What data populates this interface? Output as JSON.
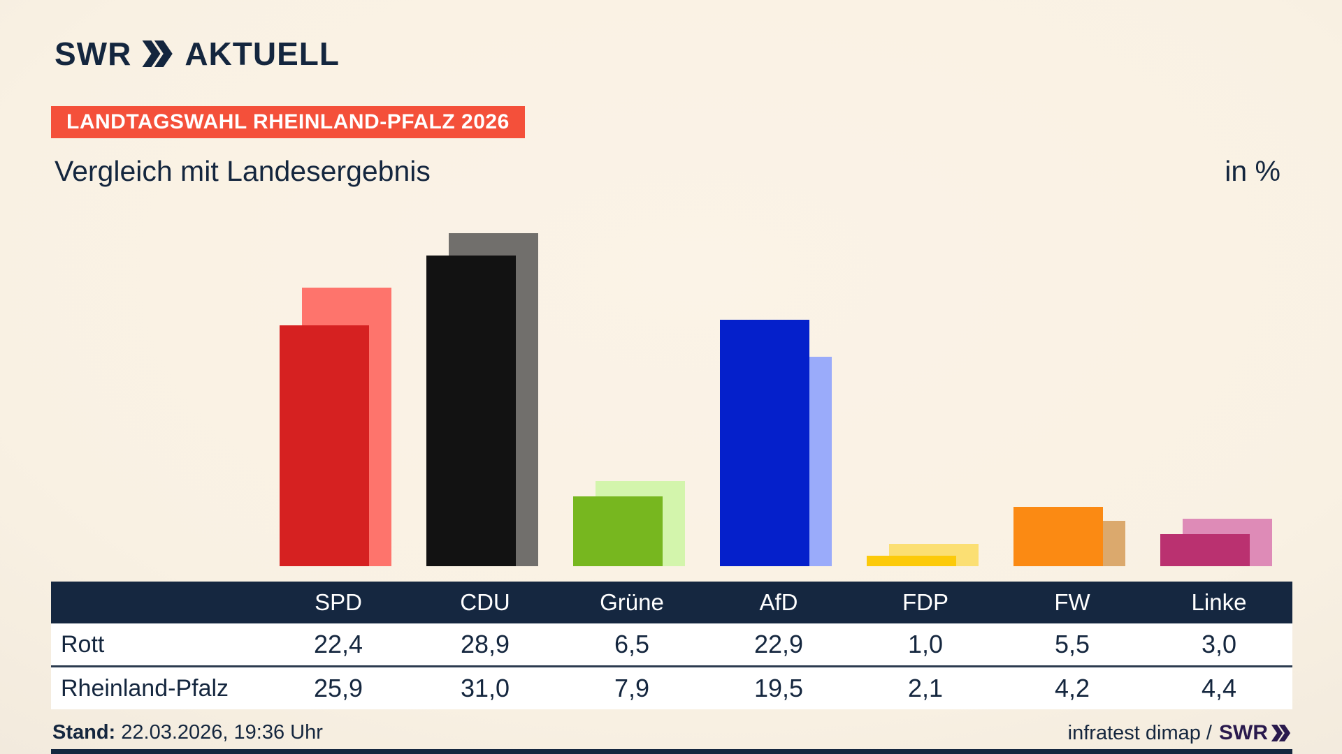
{
  "brand": {
    "station": "SWR",
    "program": "AKTUELL",
    "badge": "LANDTAGSWAHL RHEINLAND-PFALZ 2026"
  },
  "header": {
    "title": "Vergleich mit Landesergebnis",
    "unit_label": "in %"
  },
  "chart_data": {
    "type": "bar",
    "title": "Vergleich mit Landesergebnis",
    "ylabel": "in %",
    "ylim": [
      0,
      31
    ],
    "grid": false,
    "legend_position": "table-below",
    "categories": [
      "SPD",
      "CDU",
      "Grüne",
      "AfD",
      "FDP",
      "FW",
      "Linke"
    ],
    "series": [
      {
        "name": "Rott",
        "values": [
          22.4,
          28.9,
          6.5,
          22.9,
          1.0,
          5.5,
          3.0
        ],
        "colors": [
          "#d62121",
          "#121212",
          "#77b71f",
          "#0520cb",
          "#fcca0a",
          "#fb8a13",
          "#ba3170"
        ]
      },
      {
        "name": "Rheinland-Pfalz",
        "values": [
          25.9,
          31.0,
          7.9,
          19.5,
          2.1,
          4.2,
          4.4
        ],
        "colors": [
          "#fe746c",
          "#716f6c",
          "#d3f5ac",
          "#9aabfa",
          "#fbdf73",
          "#dba96d",
          "#de8bb7"
        ]
      }
    ]
  },
  "table": {
    "columns": [
      "SPD",
      "CDU",
      "Grüne",
      "AfD",
      "FDP",
      "FW",
      "Linke"
    ],
    "rows": [
      {
        "label": "Rott",
        "values": [
          "22,4",
          "28,9",
          "6,5",
          "22,9",
          "1,0",
          "5,5",
          "3,0"
        ]
      },
      {
        "label": "Rheinland-Pfalz",
        "values": [
          "25,9",
          "31,0",
          "7,9",
          "19,5",
          "2,1",
          "4,2",
          "4,4"
        ]
      }
    ]
  },
  "footer": {
    "stand_label": "Stand:",
    "stand_value": " 22.03.2026, 19:36 Uhr",
    "source_text": "infratest dimap /",
    "source_logo": "SWR"
  },
  "colors": {
    "navy": "#14263e",
    "badge_red": "#f4503a",
    "table_header": "#152740",
    "background_center": "#faf2e6",
    "background_edge": "#d6d3cf",
    "footer_logo": "#2a1a4d"
  }
}
